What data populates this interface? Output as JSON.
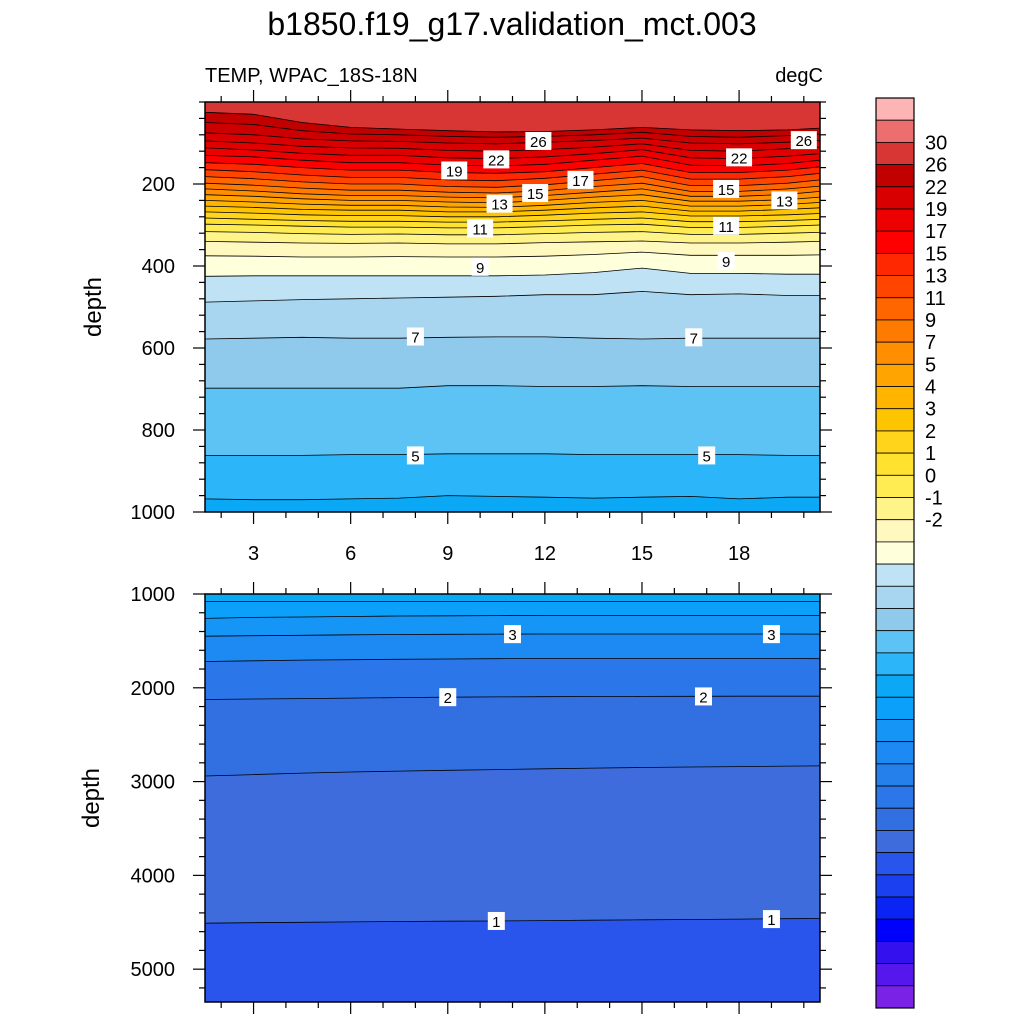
{
  "title": "b1850.f19_g17.validation_mct.003",
  "chart_data": {
    "type": "contour",
    "variable": "TEMP",
    "region": "WPAC_18S-18N",
    "subtitle_left": "TEMP, WPAC_18S-18N",
    "units": "degC",
    "xlabel": "",
    "ylabel": "depth",
    "xlim": [
      1.5,
      20.5
    ],
    "xticks": [
      3,
      6,
      9,
      12,
      15,
      18
    ],
    "xtick_labels": [
      "3",
      "6",
      "9",
      "12",
      "15",
      "18"
    ],
    "x_grid": [
      1.5,
      3,
      4.5,
      6,
      7.5,
      9,
      10.5,
      12,
      13.5,
      15,
      16.5,
      18,
      19.5,
      20.5
    ],
    "panels": [
      {
        "name": "upper",
        "ylim": [
          0,
          1000
        ],
        "yticks": [
          200,
          400,
          600,
          800,
          1000
        ],
        "ytick_labels": [
          "200",
          "400",
          "600",
          "800",
          "1000"
        ],
        "isotherm_depths": [
          {
            "level": 28,
            "depth": [
              25,
              30,
              50,
              62,
              66,
              70,
              73,
              72,
              68,
              62,
              68,
              70,
              68,
              64
            ]
          },
          {
            "level": 27,
            "depth": [
              50,
              55,
              70,
              78,
              80,
              84,
              86,
              84,
              80,
              74,
              84,
              86,
              82,
              78
            ]
          },
          {
            "level": 26,
            "depth": [
              75,
              80,
              90,
              95,
              96,
              100,
              102,
              98,
              94,
              88,
              100,
              102,
              98,
              94
            ]
          },
          {
            "level": 25,
            "depth": [
              95,
              100,
              108,
              112,
              113,
              118,
              120,
              116,
              110,
              102,
              118,
              120,
              114,
              110
            ]
          },
          {
            "level": 24,
            "depth": [
              112,
              117,
              125,
              130,
              130,
              136,
              138,
              134,
              126,
              116,
              136,
              138,
              132,
              126
            ]
          },
          {
            "level": 23,
            "depth": [
              130,
              134,
              142,
              148,
              148,
              154,
              156,
              152,
              142,
              132,
              154,
              156,
              150,
              142
            ]
          },
          {
            "level": 22,
            "depth": [
              148,
              152,
              160,
              166,
              166,
              172,
              174,
              170,
              160,
              150,
              172,
              172,
              166,
              158
            ]
          },
          {
            "level": 21,
            "depth": [
              165,
              170,
              178,
              184,
              184,
              190,
              192,
              186,
              176,
              166,
              188,
              188,
              182,
              174
            ]
          },
          {
            "level": 20,
            "depth": [
              182,
              187,
              195,
              200,
              200,
              206,
              208,
              202,
              192,
              182,
              204,
              204,
              198,
              190
            ]
          },
          {
            "level": 19,
            "depth": [
              198,
              203,
              210,
              215,
              215,
              220,
              222,
              216,
              206,
              198,
              218,
              218,
              212,
              205
            ]
          },
          {
            "level": 18,
            "depth": [
              212,
              217,
              224,
              228,
              228,
              232,
              234,
              228,
              220,
              212,
              230,
              230,
              225,
              218
            ]
          },
          {
            "level": 17,
            "depth": [
              226,
              230,
              236,
              240,
              240,
              244,
              246,
              240,
              232,
              226,
              242,
              242,
              238,
              232
            ]
          },
          {
            "level": 16,
            "depth": [
              240,
              244,
              249,
              252,
              252,
              256,
              257,
              252,
              245,
              240,
              254,
              254,
              250,
              245
            ]
          },
          {
            "level": 15,
            "depth": [
              254,
              257,
              262,
              264,
              264,
              268,
              268,
              264,
              258,
              254,
              266,
              266,
              262,
              258
            ]
          },
          {
            "level": 14,
            "depth": [
              268,
              271,
              275,
              277,
              277,
              280,
              280,
              276,
              271,
              268,
              278,
              278,
              275,
              272
            ]
          },
          {
            "level": 13,
            "depth": [
              283,
              286,
              289,
              291,
              291,
              293,
              293,
              290,
              286,
              283,
              292,
              292,
              289,
              286
            ]
          },
          {
            "level": 12,
            "depth": [
              298,
              300,
              303,
              305,
              305,
              307,
              307,
              304,
              300,
              298,
              306,
              306,
              303,
              300
            ]
          },
          {
            "level": 11,
            "depth": [
              316,
              318,
              321,
              323,
              322,
              324,
              324,
              321,
              318,
              316,
              323,
              323,
              320,
              318
            ]
          },
          {
            "level": 10,
            "depth": [
              340,
              342,
              344,
              345,
              344,
              346,
              346,
              343,
              341,
              339,
              344,
              344,
              342,
              340
            ]
          },
          {
            "level": 9,
            "depth": [
              375,
              376,
              378,
              378,
              377,
              378,
              378,
              376,
              372,
              366,
              374,
              374,
              374,
              373
            ]
          },
          {
            "level": 8,
            "depth": [
              425,
              424,
              424,
              424,
              424,
              424,
              424,
              422,
              416,
              405,
              418,
              418,
              420,
              420
            ]
          },
          {
            "level": 7.5,
            "depth": [
              488,
              485,
              482,
              480,
              478,
              476,
              474,
              470,
              470,
              462,
              470,
              468,
              472,
              472
            ]
          },
          {
            "level": 7,
            "depth": [
              578,
              576,
              574,
              576,
              576,
              574,
              573,
              573,
              576,
              578,
              576,
              576,
              576,
              576
            ]
          },
          {
            "level": 6,
            "depth": [
              698,
              698,
              698,
              698,
              698,
              692,
              692,
              694,
              694,
              692,
              694,
              694,
              694,
              694
            ]
          },
          {
            "level": 5,
            "depth": [
              862,
              862,
              862,
              860,
              860,
              858,
              858,
              858,
              860,
              860,
              860,
              860,
              862,
              862
            ]
          },
          {
            "level": 4.5,
            "depth": [
              968,
              970,
              970,
              968,
              966,
              960,
              962,
              964,
              966,
              964,
              962,
              968,
              964,
              964
            ]
          }
        ],
        "contour_labels": [
          {
            "text": "26",
            "x": 11.8,
            "depth": 95
          },
          {
            "text": "26",
            "x": 20.0,
            "depth": 93
          },
          {
            "text": "22",
            "x": 10.5,
            "depth": 140
          },
          {
            "text": "22",
            "x": 18.0,
            "depth": 135
          },
          {
            "text": "19",
            "x": 9.2,
            "depth": 167
          },
          {
            "text": "17",
            "x": 13.1,
            "depth": 190
          },
          {
            "text": "15",
            "x": 11.7,
            "depth": 222
          },
          {
            "text": "15",
            "x": 17.6,
            "depth": 212
          },
          {
            "text": "13",
            "x": 10.6,
            "depth": 248
          },
          {
            "text": "13",
            "x": 19.4,
            "depth": 240
          },
          {
            "text": "11",
            "x": 10.0,
            "depth": 308
          },
          {
            "text": "11",
            "x": 17.6,
            "depth": 302
          },
          {
            "text": "9",
            "x": 10.0,
            "depth": 402
          },
          {
            "text": "9",
            "x": 17.6,
            "depth": 388
          },
          {
            "text": "7",
            "x": 8.0,
            "depth": 572
          },
          {
            "text": "7",
            "x": 16.6,
            "depth": 574
          },
          {
            "text": "5",
            "x": 8.0,
            "depth": 862
          },
          {
            "text": "5",
            "x": 17.0,
            "depth": 862
          }
        ]
      },
      {
        "name": "lower",
        "ylim": [
          1000,
          5350
        ],
        "yticks": [
          1000,
          2000,
          3000,
          4000,
          5000
        ],
        "ytick_labels": [
          "1000",
          "2000",
          "3000",
          "4000",
          "5000"
        ],
        "isotherm_depths": [
          {
            "level": 4,
            "depth": [
              1080,
              1080,
              1080,
              1080,
              1080,
              1080,
              1080,
              1080,
              1080,
              1080,
              1080,
              1080,
              1080,
              1080
            ]
          },
          {
            "level": 3.5,
            "depth": [
              1260,
              1250,
              1245,
              1240,
              1235,
              1232,
              1230,
              1228,
              1228,
              1228,
              1228,
              1228,
              1228,
              1230
            ]
          },
          {
            "level": 3,
            "depth": [
              1450,
              1445,
              1440,
              1435,
              1432,
              1430,
              1428,
              1426,
              1426,
              1426,
              1426,
              1426,
              1426,
              1428
            ]
          },
          {
            "level": 2.5,
            "depth": [
              1720,
              1712,
              1705,
              1700,
              1696,
              1693,
              1690,
              1688,
              1688,
              1688,
              1688,
              1688,
              1688,
              1690
            ]
          },
          {
            "level": 2,
            "depth": [
              2125,
              2120,
              2115,
              2110,
              2105,
              2100,
              2097,
              2095,
              2093,
              2092,
              2091,
              2090,
              2090,
              2090
            ]
          },
          {
            "level": 1.5,
            "depth": [
              2940,
              2925,
              2910,
              2898,
              2888,
              2880,
              2872,
              2864,
              2856,
              2850,
              2845,
              2840,
              2835,
              2833
            ]
          },
          {
            "level": 1,
            "depth": [
              4510,
              4505,
              4500,
              4496,
              4492,
              4489,
              4486,
              4482,
              4478,
              4474,
              4470,
              4466,
              4462,
              4460
            ]
          }
        ],
        "contour_labels": [
          {
            "text": "3",
            "x": 11.0,
            "depth": 1428
          },
          {
            "text": "3",
            "x": 19.0,
            "depth": 1428
          },
          {
            "text": "2",
            "x": 9.0,
            "depth": 2100
          },
          {
            "text": "2",
            "x": 16.9,
            "depth": 2092
          },
          {
            "text": "1",
            "x": 10.5,
            "depth": 4486
          },
          {
            "text": "1",
            "x": 19.0,
            "depth": 4466
          }
        ]
      }
    ],
    "colorbar": {
      "tick_labels": [
        "30",
        "26",
        "22",
        "19",
        "17",
        "15",
        "13",
        "11",
        "9",
        "7",
        "5",
        "4",
        "3",
        "2",
        "1",
        "0",
        "-1",
        "-2"
      ],
      "band_colors": [
        "#FCB4B4",
        "#EC6E6E",
        "#D83535",
        "#C10000",
        "#D80000",
        "#EC0000",
        "#FF0000",
        "#FF2800",
        "#FF4500",
        "#FF6600",
        "#FF7B00",
        "#FF8F00",
        "#FFA400",
        "#FFB400",
        "#FFC400",
        "#FFD41A",
        "#FFE12F",
        "#FFEB52",
        "#FFF48A",
        "#FFF8BF",
        "#FEFFDB",
        "#BFE3F5",
        "#A8D6F0",
        "#8FCAEC",
        "#5DC3F5",
        "#2DB5F9",
        "#0AA8F5",
        "#0BA0FA",
        "#1596F6",
        "#1C8AF2",
        "#2580EC",
        "#2B76E8",
        "#3270E2",
        "#3E6CDC",
        "#2A55EC",
        "#1A40F0",
        "#0A24F4",
        "#0000FF",
        "#3410EE",
        "#5517EC",
        "#7A22E6"
      ]
    }
  }
}
